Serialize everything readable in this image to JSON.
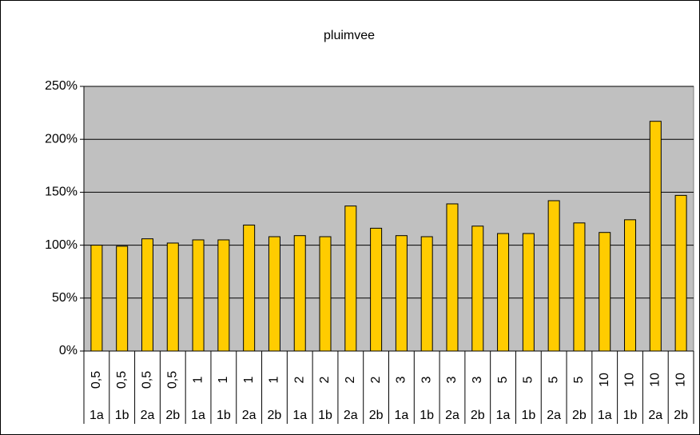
{
  "chart_data": {
    "type": "bar",
    "title": "pluimvee",
    "groups": [
      "0,5",
      "0,5",
      "0,5",
      "0,5",
      "1",
      "1",
      "1",
      "1",
      "2",
      "2",
      "2",
      "2",
      "3",
      "3",
      "3",
      "3",
      "5",
      "5",
      "5",
      "5",
      "10",
      "10",
      "10",
      "10"
    ],
    "categories": [
      "1a",
      "1b",
      "2a",
      "2b",
      "1a",
      "1b",
      "2a",
      "2b",
      "1a",
      "1b",
      "2a",
      "2b",
      "1a",
      "1b",
      "2a",
      "2b",
      "1a",
      "1b",
      "2a",
      "2b",
      "1a",
      "1b",
      "2a",
      "2b"
    ],
    "values": [
      100,
      99,
      106,
      102,
      105,
      105,
      119,
      108,
      109,
      108,
      137,
      116,
      109,
      108,
      139,
      118,
      111,
      111,
      142,
      121,
      112,
      124,
      217,
      147
    ],
    "color": "#ffcc00",
    "ylim": [
      0,
      250
    ],
    "yticks": [
      {
        "value": 0,
        "label": "0%"
      },
      {
        "value": 50,
        "label": "50%"
      },
      {
        "value": 100,
        "label": "100%"
      },
      {
        "value": 150,
        "label": "150%"
      },
      {
        "value": 200,
        "label": "200%"
      },
      {
        "value": 250,
        "label": "250%"
      }
    ],
    "grid": true
  }
}
